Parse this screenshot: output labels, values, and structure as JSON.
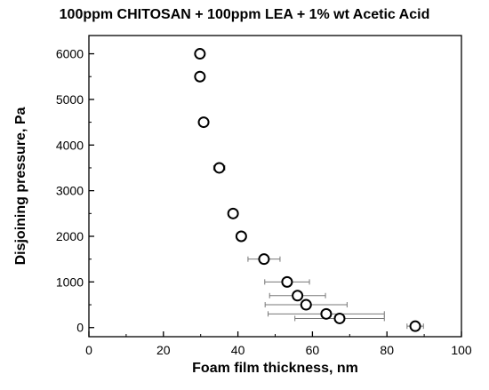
{
  "chart_data": {
    "type": "scatter",
    "title": "100ppm CHITOSAN + 100ppm LEA + 1% wt Acetic Acid",
    "xlabel": "Foam film thickness, nm",
    "ylabel": "Disjoining pressure, Pa",
    "xlim": [
      0,
      100
    ],
    "ylim": [
      -200,
      6400
    ],
    "xticks": [
      0,
      20,
      40,
      60,
      80,
      100
    ],
    "yticks": [
      0,
      1000,
      2000,
      3000,
      4000,
      5000,
      6000
    ],
    "grid": false,
    "marker": "open-circle",
    "series": [
      {
        "points": [
          {
            "x": 29.8,
            "y": 6000,
            "xerr": 0
          },
          {
            "x": 29.8,
            "y": 5500,
            "xerr": 0
          },
          {
            "x": 30.8,
            "y": 4500,
            "xerr": 0
          },
          {
            "x": 35.0,
            "y": 3500,
            "xerr": 1.5
          },
          {
            "x": 38.7,
            "y": 2500,
            "xerr": 0
          },
          {
            "x": 40.9,
            "y": 2000,
            "xerr": 0
          },
          {
            "x": 47.0,
            "y": 1500,
            "xerr": 4.3
          },
          {
            "x": 53.2,
            "y": 1000,
            "xerr": 6.0
          },
          {
            "x": 56.0,
            "y": 700,
            "xerr": 7.5
          },
          {
            "x": 58.3,
            "y": 500,
            "xerr": 11.0
          },
          {
            "x": 63.7,
            "y": 300,
            "xerr": 15.6
          },
          {
            "x": 67.3,
            "y": 200,
            "xerr": 12.0
          },
          {
            "x": 87.6,
            "y": 30,
            "xerr": 2.2
          }
        ]
      }
    ]
  }
}
